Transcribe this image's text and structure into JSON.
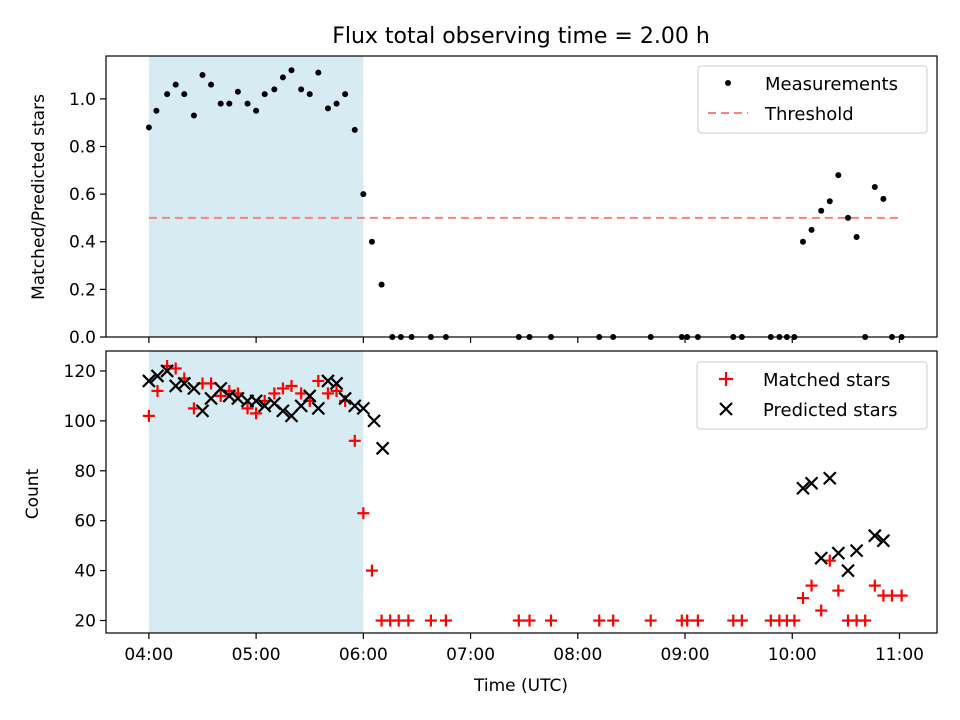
{
  "chart_data": [
    {
      "type": "scatter",
      "title": "Flux total observing time = 2.00 h",
      "xlabel": "",
      "ylabel": "Matched/Predicted stars",
      "xlim": [
        3.6,
        11.35
      ],
      "ylim": [
        0,
        1.18
      ],
      "x_axis": "time (UTC hours)",
      "yticks": [
        0,
        0.2,
        0.4,
        0.6,
        0.8,
        1.0
      ],
      "ytick_labels": [
        "0.0",
        "0.2",
        "0.4",
        "0.6",
        "0.8",
        "1.0"
      ],
      "xtick_labels_shown": false,
      "shaded_interval": {
        "x": [
          4.0,
          6.0
        ],
        "color": "#add8e6"
      },
      "legend": {
        "position": "top-right",
        "entries": [
          "Measurements",
          "Threshold"
        ]
      },
      "series": [
        {
          "name": "Measurements",
          "marker": "dot",
          "color": "#000000",
          "points": [
            [
              4.0,
              0.88
            ],
            [
              4.07,
              0.95
            ],
            [
              4.17,
              1.02
            ],
            [
              4.25,
              1.06
            ],
            [
              4.33,
              1.02
            ],
            [
              4.42,
              0.93
            ],
            [
              4.5,
              1.1
            ],
            [
              4.58,
              1.06
            ],
            [
              4.67,
              0.98
            ],
            [
              4.75,
              0.98
            ],
            [
              4.83,
              1.03
            ],
            [
              4.92,
              0.98
            ],
            [
              5.0,
              0.95
            ],
            [
              5.08,
              1.02
            ],
            [
              5.17,
              1.04
            ],
            [
              5.25,
              1.09
            ],
            [
              5.33,
              1.12
            ],
            [
              5.42,
              1.04
            ],
            [
              5.5,
              1.02
            ],
            [
              5.58,
              1.11
            ],
            [
              5.67,
              0.96
            ],
            [
              5.75,
              0.98
            ],
            [
              5.83,
              1.02
            ],
            [
              5.92,
              0.87
            ],
            [
              6.0,
              0.6
            ],
            [
              6.08,
              0.4
            ],
            [
              6.17,
              0.22
            ],
            [
              6.27,
              0.0
            ],
            [
              6.35,
              0.0
            ],
            [
              6.45,
              0.0
            ],
            [
              6.63,
              0.0
            ],
            [
              6.77,
              0.0
            ],
            [
              7.45,
              0.0
            ],
            [
              7.55,
              0.0
            ],
            [
              7.75,
              0.0
            ],
            [
              8.2,
              0.0
            ],
            [
              8.33,
              0.0
            ],
            [
              8.68,
              0.0
            ],
            [
              8.97,
              0.0
            ],
            [
              9.02,
              0.0
            ],
            [
              9.12,
              0.0
            ],
            [
              9.45,
              0.0
            ],
            [
              9.53,
              0.0
            ],
            [
              9.8,
              0.0
            ],
            [
              9.88,
              0.0
            ],
            [
              9.95,
              0.0
            ],
            [
              10.02,
              0.0
            ],
            [
              10.1,
              0.4
            ],
            [
              10.18,
              0.45
            ],
            [
              10.27,
              0.53
            ],
            [
              10.35,
              0.57
            ],
            [
              10.43,
              0.68
            ],
            [
              10.52,
              0.5
            ],
            [
              10.6,
              0.42
            ],
            [
              10.68,
              0.0
            ],
            [
              10.77,
              0.63
            ],
            [
              10.85,
              0.58
            ],
            [
              10.93,
              0.0
            ],
            [
              11.02,
              0.0
            ]
          ]
        },
        {
          "name": "Threshold",
          "style": "dashed",
          "color": "#ff7f7f",
          "points": [
            [
              4.0,
              0.5
            ],
            [
              11.02,
              0.5
            ]
          ]
        }
      ]
    },
    {
      "type": "scatter",
      "title": "",
      "xlabel": "Time (UTC)",
      "ylabel": "Count",
      "xlim": [
        3.6,
        11.35
      ],
      "ylim": [
        15,
        128
      ],
      "yticks": [
        20,
        40,
        60,
        80,
        100,
        120
      ],
      "ytick_labels": [
        "20",
        "40",
        "60",
        "80",
        "100",
        "120"
      ],
      "xticks": [
        4,
        5,
        6,
        7,
        8,
        9,
        10,
        11
      ],
      "xtick_labels": [
        "04:00",
        "05:00",
        "06:00",
        "07:00",
        "08:00",
        "09:00",
        "10:00",
        "11:00"
      ],
      "shaded_interval": {
        "x": [
          4.0,
          6.0
        ],
        "color": "#add8e6"
      },
      "legend": {
        "position": "top-right",
        "entries": [
          "Matched stars",
          "Predicted stars"
        ]
      },
      "series": [
        {
          "name": "Matched stars",
          "marker": "plus",
          "color": "#ff0000",
          "points": [
            [
              4.0,
              102
            ],
            [
              4.08,
              112
            ],
            [
              4.17,
              122
            ],
            [
              4.25,
              121
            ],
            [
              4.33,
              117
            ],
            [
              4.42,
              105
            ],
            [
              4.5,
              115
            ],
            [
              4.58,
              115
            ],
            [
              4.67,
              110
            ],
            [
              4.75,
              112
            ],
            [
              4.83,
              111
            ],
            [
              4.92,
              105
            ],
            [
              5.0,
              103
            ],
            [
              5.08,
              108
            ],
            [
              5.17,
              111
            ],
            [
              5.25,
              113
            ],
            [
              5.33,
              114
            ],
            [
              5.42,
              111
            ],
            [
              5.5,
              108
            ],
            [
              5.58,
              116
            ],
            [
              5.67,
              111
            ],
            [
              5.75,
              112
            ],
            [
              5.83,
              108
            ],
            [
              5.92,
              92
            ],
            [
              6.0,
              63
            ],
            [
              6.08,
              40
            ],
            [
              6.17,
              20
            ],
            [
              6.25,
              20
            ],
            [
              6.33,
              20
            ],
            [
              6.42,
              20
            ],
            [
              6.63,
              20
            ],
            [
              6.77,
              20
            ],
            [
              7.45,
              20
            ],
            [
              7.55,
              20
            ],
            [
              7.75,
              20
            ],
            [
              8.2,
              20
            ],
            [
              8.33,
              20
            ],
            [
              8.68,
              20
            ],
            [
              8.97,
              20
            ],
            [
              9.02,
              20
            ],
            [
              9.12,
              20
            ],
            [
              9.45,
              20
            ],
            [
              9.53,
              20
            ],
            [
              9.8,
              20
            ],
            [
              9.88,
              20
            ],
            [
              9.95,
              20
            ],
            [
              10.02,
              20
            ],
            [
              10.1,
              29
            ],
            [
              10.18,
              34
            ],
            [
              10.27,
              24
            ],
            [
              10.35,
              44
            ],
            [
              10.43,
              32
            ],
            [
              10.52,
              20
            ],
            [
              10.6,
              20
            ],
            [
              10.68,
              20
            ],
            [
              10.77,
              34
            ],
            [
              10.85,
              30
            ],
            [
              10.93,
              30
            ],
            [
              11.02,
              30
            ]
          ]
        },
        {
          "name": "Predicted stars",
          "marker": "x",
          "color": "#000000",
          "points": [
            [
              4.0,
              116
            ],
            [
              4.08,
              118
            ],
            [
              4.17,
              120
            ],
            [
              4.25,
              114
            ],
            [
              4.33,
              115
            ],
            [
              4.42,
              113
            ],
            [
              4.5,
              104
            ],
            [
              4.58,
              109
            ],
            [
              4.67,
              113
            ],
            [
              4.75,
              110
            ],
            [
              4.83,
              109
            ],
            [
              4.92,
              108
            ],
            [
              5.0,
              108
            ],
            [
              5.08,
              106
            ],
            [
              5.17,
              107
            ],
            [
              5.25,
              104
            ],
            [
              5.33,
              102
            ],
            [
              5.42,
              106
            ],
            [
              5.5,
              110
            ],
            [
              5.58,
              105
            ],
            [
              5.67,
              116
            ],
            [
              5.75,
              115
            ],
            [
              5.83,
              109
            ],
            [
              5.92,
              106
            ],
            [
              6.0,
              105
            ],
            [
              6.1,
              100
            ],
            [
              6.18,
              89
            ],
            [
              10.1,
              73
            ],
            [
              10.18,
              75
            ],
            [
              10.27,
              45
            ],
            [
              10.35,
              77
            ],
            [
              10.43,
              47
            ],
            [
              10.52,
              40
            ],
            [
              10.6,
              48
            ],
            [
              10.77,
              54
            ],
            [
              10.85,
              52
            ]
          ]
        }
      ]
    }
  ]
}
